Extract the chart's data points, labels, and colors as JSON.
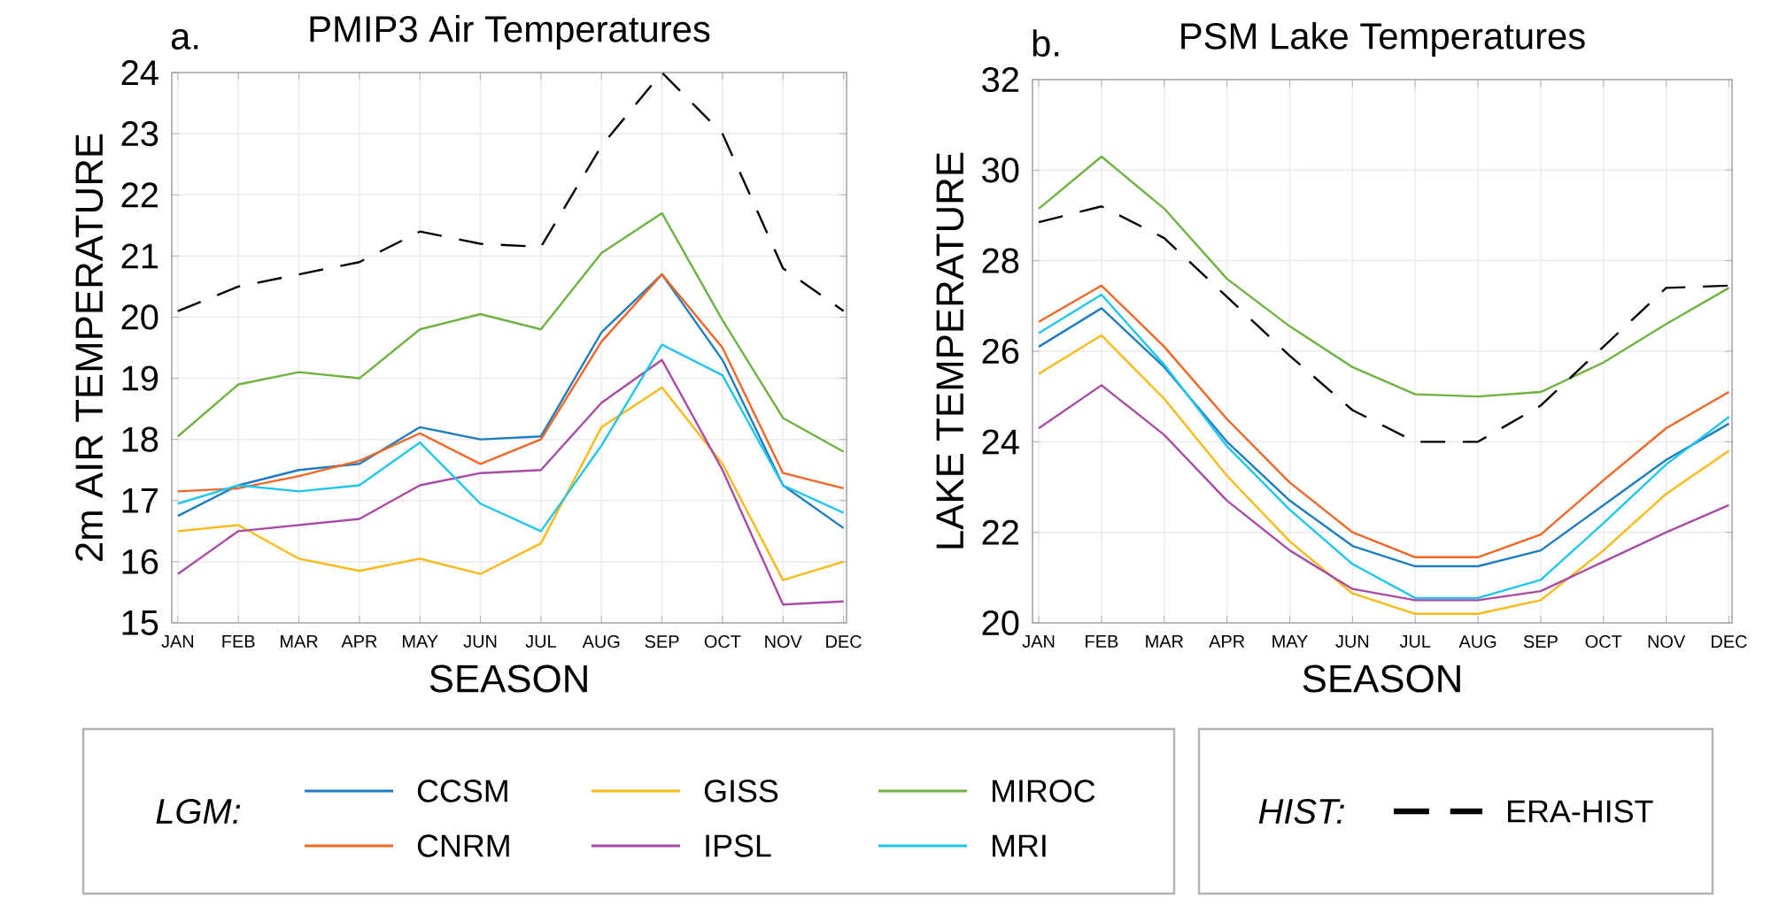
{
  "chart_data": [
    {
      "type": "line",
      "title": "PMIP3 Air Temperatures",
      "annotations": [
        "a."
      ],
      "xlabel": "SEASON",
      "ylabel": "2m AIR TEMPERATURE",
      "legend_title": "LGM:",
      "legend": "bottom",
      "grid": true,
      "marker": "none",
      "categories": [
        "JAN",
        "FEB",
        "MAR",
        "APR",
        "MAY",
        "JUN",
        "JUL",
        "AUG",
        "SEP",
        "OCT",
        "NOV",
        "DEC"
      ],
      "ylim": [
        15,
        24
      ],
      "yticks": [
        15,
        16,
        17,
        18,
        19,
        20,
        21,
        22,
        23,
        24
      ],
      "series": [
        {
          "name": "CCSM",
          "color": "#1d7dc2",
          "line_style": "solid",
          "values": [
            16.75,
            17.25,
            17.5,
            17.6,
            18.2,
            18.0,
            18.05,
            19.75,
            20.7,
            19.3,
            17.25,
            16.55
          ]
        },
        {
          "name": "CNRM",
          "color": "#f26522",
          "line_style": "solid",
          "values": [
            17.15,
            17.2,
            17.4,
            17.65,
            18.1,
            17.6,
            18.0,
            19.6,
            20.7,
            19.5,
            17.45,
            17.2
          ]
        },
        {
          "name": "GISS",
          "color": "#fdb913",
          "line_style": "solid",
          "values": [
            16.5,
            16.6,
            16.05,
            15.85,
            16.05,
            15.8,
            16.3,
            18.2,
            18.85,
            17.6,
            15.7,
            16.0
          ]
        },
        {
          "name": "IPSL",
          "color": "#a94ba6",
          "line_style": "solid",
          "values": [
            15.8,
            16.5,
            16.6,
            16.7,
            17.25,
            17.45,
            17.5,
            18.6,
            19.3,
            17.5,
            15.3,
            15.35
          ]
        },
        {
          "name": "MIROC",
          "color": "#6db33f",
          "line_style": "solid",
          "values": [
            18.05,
            18.9,
            19.1,
            19.0,
            19.8,
            20.05,
            19.8,
            21.05,
            21.7,
            19.95,
            18.35,
            17.8
          ]
        },
        {
          "name": "MRI",
          "color": "#1dc6f0",
          "line_style": "solid",
          "values": [
            16.95,
            17.25,
            17.15,
            17.25,
            17.95,
            16.95,
            16.5,
            17.9,
            19.55,
            19.05,
            17.25,
            16.8
          ]
        },
        {
          "color": "#000000",
          "line_style": "dashed",
          "values": [
            20.1,
            20.5,
            20.7,
            20.9,
            21.4,
            21.2,
            21.15,
            22.8,
            24.0,
            23.0,
            20.8,
            20.1
          ]
        }
      ]
    },
    {
      "type": "line",
      "title": "PSM Lake Temperatures",
      "annotations": [
        "b."
      ],
      "xlabel": "SEASON",
      "ylabel": "LAKE TEMPERATURE",
      "legend_title": "HIST:",
      "legend": "bottom",
      "grid": true,
      "marker": "none",
      "categories": [
        "JAN",
        "FEB",
        "MAR",
        "APR",
        "MAY",
        "JUN",
        "JUL",
        "AUG",
        "SEP",
        "OCT",
        "NOV",
        "DEC"
      ],
      "ylim": [
        20,
        32
      ],
      "yticks": [
        20,
        22,
        24,
        26,
        28,
        30,
        32
      ],
      "series": [
        {
          "color": "#1d7dc2",
          "line_style": "solid",
          "values": [
            26.1,
            26.95,
            25.65,
            24.0,
            22.7,
            21.7,
            21.25,
            21.25,
            21.6,
            22.6,
            23.6,
            24.4
          ]
        },
        {
          "color": "#f26522",
          "line_style": "solid",
          "values": [
            26.65,
            27.45,
            26.1,
            24.5,
            23.1,
            22.0,
            21.45,
            21.45,
            21.95,
            23.15,
            24.3,
            25.1
          ]
        },
        {
          "color": "#fdb913",
          "line_style": "solid",
          "values": [
            25.5,
            26.35,
            24.95,
            23.25,
            21.8,
            20.65,
            20.2,
            20.2,
            20.5,
            21.6,
            22.85,
            23.8
          ]
        },
        {
          "color": "#a94ba6",
          "line_style": "solid",
          "values": [
            24.3,
            25.25,
            24.15,
            22.7,
            21.6,
            20.75,
            20.5,
            20.5,
            20.7,
            21.35,
            22.0,
            22.6
          ]
        },
        {
          "color": "#6db33f",
          "line_style": "solid",
          "values": [
            29.15,
            30.3,
            29.15,
            27.6,
            26.55,
            25.65,
            25.05,
            25.0,
            25.1,
            25.75,
            26.6,
            27.4
          ]
        },
        {
          "color": "#1dc6f0",
          "line_style": "solid",
          "values": [
            26.4,
            27.25,
            25.7,
            23.9,
            22.5,
            21.3,
            20.55,
            20.55,
            20.95,
            22.2,
            23.5,
            24.55
          ]
        },
        {
          "name": "ERA-HIST",
          "color": "#000000",
          "line_style": "dashed",
          "values": [
            28.85,
            29.2,
            28.5,
            27.2,
            25.9,
            24.7,
            24.0,
            24.0,
            24.8,
            26.1,
            27.4,
            27.45
          ]
        }
      ]
    }
  ]
}
